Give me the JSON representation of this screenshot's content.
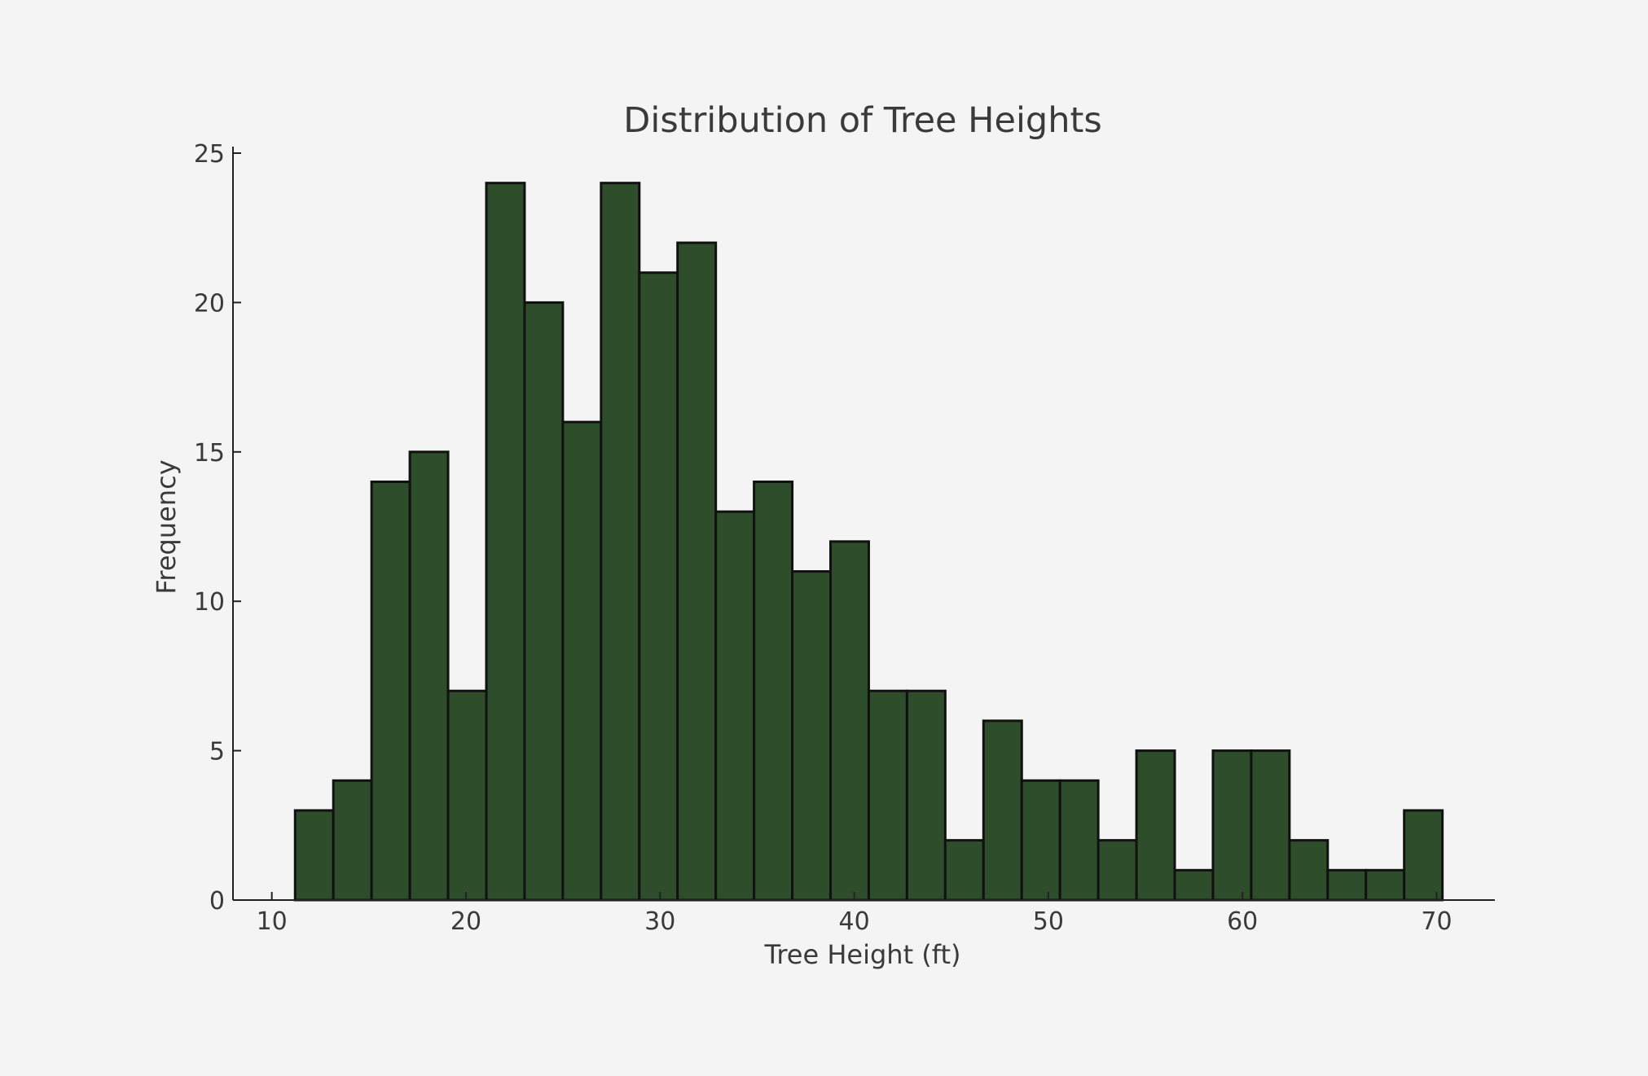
{
  "chart_data": {
    "type": "bar",
    "title": "Distribution of Tree Heights",
    "xlabel": "Tree Height (ft)",
    "ylabel": "Frequency",
    "bin_start": 11.2,
    "bin_width": 1.97,
    "values": [
      3,
      4,
      14,
      15,
      7,
      24,
      20,
      16,
      24,
      21,
      22,
      13,
      14,
      11,
      12,
      7,
      7,
      2,
      6,
      4,
      4,
      2,
      5,
      1,
      5,
      5,
      2,
      1,
      1,
      3
    ],
    "xlim": [
      8,
      73
    ],
    "ylim": [
      0,
      25
    ],
    "xticks": [
      10,
      20,
      30,
      40,
      50,
      60,
      70
    ],
    "xtick_labels": [
      "10",
      "20",
      "30",
      "40",
      "50",
      "60",
      "70"
    ],
    "yticks": [
      0,
      5,
      10,
      15,
      20,
      25
    ],
    "ytick_labels": [
      "0",
      "5",
      "10",
      "15",
      "20",
      "25"
    ],
    "grid": false,
    "bar_color": "#2e4d2a",
    "edge_color": "#111111",
    "background": "#f4f4f4"
  }
}
